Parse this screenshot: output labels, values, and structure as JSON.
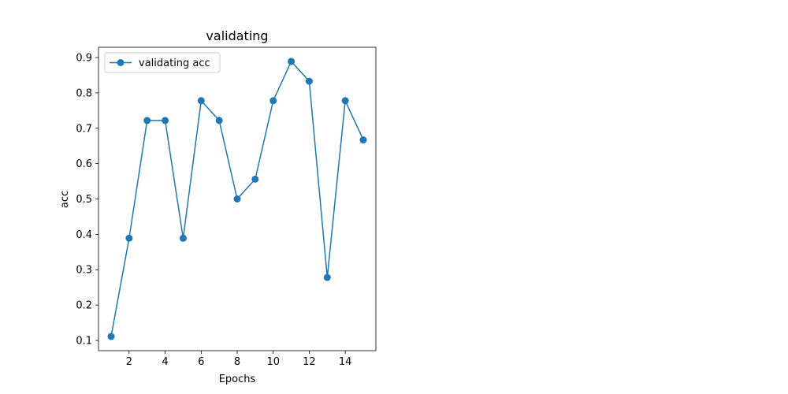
{
  "chart_data": {
    "type": "line",
    "title": "validating",
    "xlabel": "Epochs",
    "ylabel": "acc",
    "xlim": [
      0.3,
      15.7
    ],
    "ylim": [
      0.071,
      0.929
    ],
    "xticks": [
      2,
      4,
      6,
      8,
      10,
      12,
      14
    ],
    "yticks": [
      0.1,
      0.2,
      0.3,
      0.4,
      0.5,
      0.6,
      0.7,
      0.8,
      0.9
    ],
    "grid": false,
    "legend": "upper-left",
    "series": [
      {
        "name": "validating acc",
        "color": "#1f77b4",
        "marker": "circle",
        "x": [
          1,
          2,
          3,
          4,
          5,
          6,
          7,
          8,
          9,
          10,
          11,
          12,
          13,
          14,
          15
        ],
        "y": [
          0.111,
          0.389,
          0.722,
          0.722,
          0.389,
          0.778,
          0.722,
          0.5,
          0.556,
          0.778,
          0.889,
          0.833,
          0.278,
          0.778,
          0.667
        ]
      }
    ]
  }
}
